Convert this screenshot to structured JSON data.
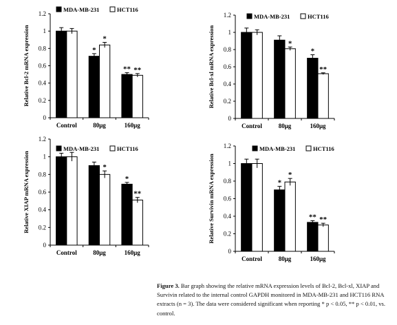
{
  "chart_data": [
    {
      "type": "bar",
      "ylabel": "Relative Bcl-2 mRNA expression",
      "categories": [
        "Control",
        "80μg",
        "160μg"
      ],
      "ylim": [
        0,
        1.2
      ],
      "yticks": [
        "0",
        "0.2",
        "0.4",
        "0.6",
        "0.8",
        "1",
        "1.2"
      ],
      "legend": "top",
      "series": [
        {
          "name": "MDA-MB-231",
          "values": [
            1.0,
            0.71,
            0.5
          ],
          "errors": [
            0.04,
            0.03,
            0.02
          ],
          "sig": [
            "",
            "*",
            "**"
          ]
        },
        {
          "name": "HCT116",
          "values": [
            1.0,
            0.84,
            0.49
          ],
          "errors": [
            0.03,
            0.03,
            0.02
          ],
          "sig": [
            "",
            "*",
            "**"
          ]
        }
      ]
    },
    {
      "type": "bar",
      "ylabel": "Relative Bcl-xl mRNA expression",
      "categories": [
        "Control",
        "80μg",
        "160μg"
      ],
      "ylim": [
        0,
        1.2
      ],
      "yticks": [
        "0",
        "0.2",
        "0.4",
        "0.6",
        "0.8",
        "1",
        "1.2"
      ],
      "legend": "top",
      "series": [
        {
          "name": "MDA-MB-231",
          "values": [
            1.0,
            0.91,
            0.7
          ],
          "errors": [
            0.05,
            0.05,
            0.04
          ],
          "sig": [
            "",
            "",
            "*"
          ]
        },
        {
          "name": "HCT116",
          "values": [
            1.0,
            0.81,
            0.52
          ],
          "errors": [
            0.03,
            0.02,
            0.01
          ],
          "sig": [
            "",
            "*",
            "**"
          ]
        }
      ]
    },
    {
      "type": "bar",
      "ylabel": "Relative XIAP mRNA expression",
      "categories": [
        "Control",
        "80μg",
        "160μg"
      ],
      "ylim": [
        0,
        1.2
      ],
      "yticks": [
        "0",
        "0.2",
        "0.4",
        "0.6",
        "0.8",
        "1",
        "1.2"
      ],
      "legend": "top",
      "series": [
        {
          "name": "MDA-MB-231",
          "values": [
            1.0,
            0.9,
            0.69
          ],
          "errors": [
            0.04,
            0.04,
            0.02
          ],
          "sig": [
            "",
            "",
            "*"
          ]
        },
        {
          "name": "HCT116",
          "values": [
            1.0,
            0.8,
            0.51
          ],
          "errors": [
            0.05,
            0.04,
            0.03
          ],
          "sig": [
            "",
            "*",
            "**"
          ]
        }
      ]
    },
    {
      "type": "bar",
      "ylabel": "Relative Survivin mRNA expression",
      "categories": [
        "Control",
        "80μg",
        "160μg"
      ],
      "ylim": [
        0,
        1.2
      ],
      "yticks": [
        "0",
        "0.2",
        "0.4",
        "0.6",
        "0.8",
        "1",
        "1.2"
      ],
      "legend": "top",
      "series": [
        {
          "name": "MDA-MB-231",
          "values": [
            1.0,
            0.7,
            0.33
          ],
          "errors": [
            0.05,
            0.04,
            0.02
          ],
          "sig": [
            "",
            "*",
            "**"
          ]
        },
        {
          "name": "HCT116",
          "values": [
            1.0,
            0.79,
            0.3
          ],
          "errors": [
            0.05,
            0.04,
            0.02
          ],
          "sig": [
            "",
            "*",
            "**"
          ]
        }
      ]
    }
  ],
  "caption": {
    "bold": "Figure 3.",
    "text": " Bar graph showing the relative mRNA expression levels of Bcl-2, Bcl-xl, XIAP and Survivin related to the internal control GAPDH monitored in MDA-MB-231 and HCT116 RNA extracts (n = 3). The data were considered significant when reporting * p < 0.05, ** p < 0.01, vs. control."
  },
  "colors": {
    "series1_fill": "#000000",
    "series2_fill": "#ffffff",
    "axis": "#000000"
  }
}
